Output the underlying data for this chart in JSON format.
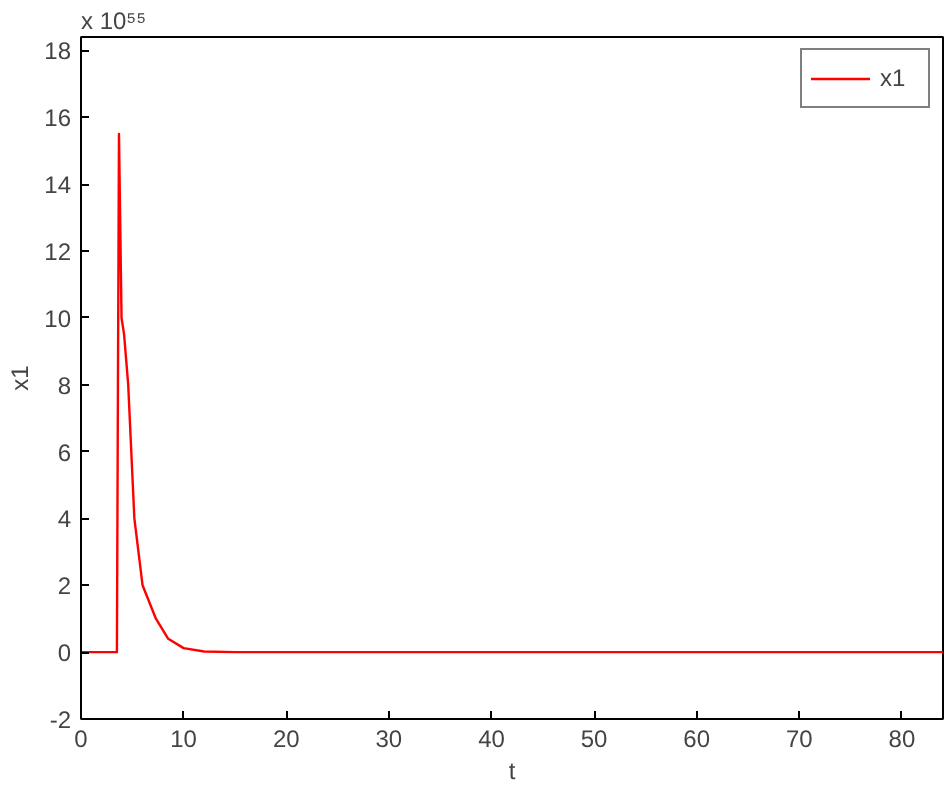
{
  "chart_data": {
    "type": "line",
    "xlabel": "t",
    "ylabel": "x1",
    "annotations": [
      "x 10⁵⁵"
    ],
    "series": [
      {
        "name": "x1",
        "color": "#ff0000",
        "x": [
          0,
          3.5,
          3.6,
          3.7,
          3.95,
          4.2,
          4.6,
          5.2,
          6.0,
          7.3,
          8.5,
          10,
          12,
          15,
          84
        ],
        "values": [
          0,
          0,
          8,
          15.5,
          10,
          9.5,
          8,
          4,
          2,
          1,
          0.4,
          0.12,
          0.02,
          0,
          0
        ]
      }
    ],
    "xlim": [
      0,
      84
    ],
    "xticks": [
      0,
      10,
      20,
      30,
      40,
      50,
      60,
      70,
      80
    ],
    "ylim": [
      -2,
      18.4
    ],
    "yticks": [
      -2,
      0,
      2,
      4,
      6,
      8,
      10,
      12,
      14,
      16,
      18
    ],
    "grid": false,
    "legend": "top right",
    "line_style": "solid",
    "marker": "none"
  }
}
